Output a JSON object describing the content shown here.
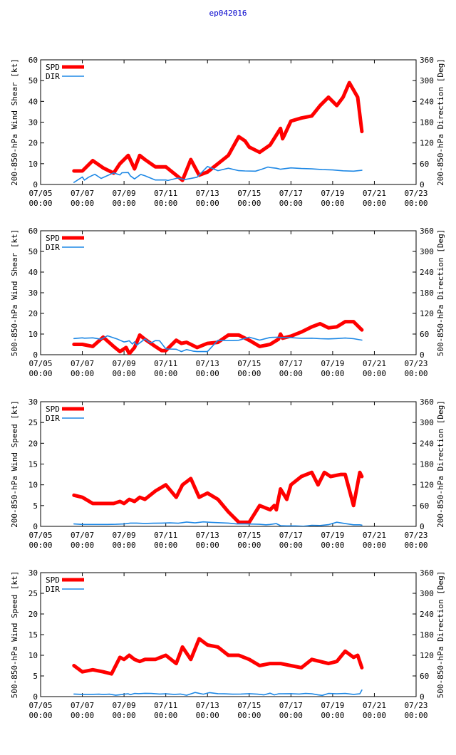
{
  "title": "ep042016",
  "colors": {
    "spd": "#ff0000",
    "dir": "#1e88e5",
    "title": "#0000cc"
  },
  "x_ticks": [
    [
      "07/05",
      "00:00"
    ],
    [
      "07/07",
      "00:00"
    ],
    [
      "07/09",
      "00:00"
    ],
    [
      "07/11",
      "00:00"
    ],
    [
      "07/13",
      "00:00"
    ],
    [
      "07/15",
      "00:00"
    ],
    [
      "07/17",
      "00:00"
    ],
    [
      "07/19",
      "00:00"
    ],
    [
      "07/21",
      "00:00"
    ],
    [
      "07/23",
      "00:00"
    ]
  ],
  "legend": {
    "spd": "SPD",
    "dir": "DIR"
  },
  "chart_data": [
    {
      "type": "line",
      "ylabel": "200-850-hPa Wind Shear [kt]",
      "y2label": "200-850-hPa Direction [Deg]",
      "xlim": [
        0,
        18
      ],
      "ylim": [
        0,
        60
      ],
      "y2lim": [
        0,
        360
      ],
      "yticks": [
        0,
        10,
        20,
        30,
        40,
        50,
        60
      ],
      "y2ticks": [
        0,
        60,
        120,
        180,
        240,
        300,
        360
      ],
      "series": [
        {
          "name": "SPD",
          "axis": "left",
          "x": [
            1.6,
            2.0,
            2.5,
            3.0,
            3.5,
            3.8,
            4.2,
            4.5,
            4.75,
            5.0,
            5.5,
            6.0,
            6.5,
            6.8,
            7.2,
            7.6,
            8.0,
            8.5,
            9.0,
            9.5,
            9.8,
            10.0,
            10.5,
            11.0,
            11.5,
            11.6,
            11.7,
            12.0,
            12.5,
            13.0,
            13.4,
            13.8,
            14.2,
            14.5,
            14.8,
            15.2,
            15.4
          ],
          "values": [
            6.5,
            6.5,
            11.5,
            8,
            5.5,
            10,
            14,
            7.5,
            14,
            12,
            8.5,
            8.5,
            4.5,
            2,
            12,
            4.5,
            6,
            10,
            14,
            23,
            21,
            18,
            15.5,
            19,
            27,
            22,
            24,
            30.5,
            32,
            33,
            38,
            42,
            38,
            42,
            49,
            42,
            25.5
          ]
        },
        {
          "name": "DIR",
          "axis": "right",
          "x": [
            1.6,
            2.0,
            2.1,
            2.3,
            2.6,
            2.9,
            3.5,
            3.8,
            3.9,
            4.2,
            4.3,
            4.5,
            4.8,
            5.0,
            5.5,
            6.0,
            6.1,
            6.5,
            6.6,
            6.9,
            7.5,
            8.0,
            8.5,
            9.0,
            9.5,
            9.8,
            10.3,
            10.6,
            10.9,
            11.0,
            11.3,
            11.5,
            12.0,
            12.5,
            13.0,
            13.5,
            14.0,
            14.5,
            15.0,
            15.4
          ],
          "values": [
            6,
            21.5,
            12.5,
            21,
            29.5,
            17.5,
            33.5,
            27.5,
            34,
            34.5,
            25,
            16,
            29,
            25,
            13,
            13,
            11.5,
            17.5,
            18.5,
            14,
            21,
            52,
            40,
            47,
            40,
            39,
            38.5,
            44,
            50.5,
            49,
            47,
            44,
            48,
            46,
            45,
            43,
            42,
            39.5,
            38.5,
            41
          ]
        }
      ]
    },
    {
      "type": "line",
      "ylabel": "500-850-hPa Wind Shear [kt]",
      "y2label": "500-850-hPa Direction [Deg]",
      "xlim": [
        0,
        18
      ],
      "ylim": [
        0,
        60
      ],
      "y2lim": [
        0,
        360
      ],
      "yticks": [
        0,
        10,
        20,
        30,
        40,
        50,
        60
      ],
      "y2ticks": [
        0,
        60,
        120,
        180,
        240,
        300,
        360
      ],
      "series": [
        {
          "name": "SPD",
          "axis": "left",
          "x": [
            1.6,
            2.0,
            2.5,
            3.0,
            3.5,
            3.8,
            4.1,
            4.25,
            4.5,
            4.75,
            5.0,
            5.5,
            5.8,
            6.0,
            6.5,
            6.75,
            7.0,
            7.5,
            8.0,
            8.5,
            9.0,
            9.5,
            10.0,
            10.5,
            11.0,
            11.4,
            11.5,
            11.6,
            12.0,
            12.5,
            13.0,
            13.4,
            13.8,
            14.2,
            14.6,
            15.0,
            15.4
          ],
          "values": [
            5,
            5,
            4,
            8.5,
            4,
            1.5,
            3.5,
            0.5,
            3.5,
            9.5,
            7.5,
            4,
            2,
            2,
            7,
            5.5,
            6,
            3.5,
            5.5,
            6,
            9.5,
            9.5,
            7,
            4,
            5,
            7.5,
            10,
            8,
            9,
            11,
            13.5,
            15,
            13,
            13.5,
            16,
            16,
            12
          ]
        },
        {
          "name": "DIR",
          "axis": "right",
          "x": [
            1.6,
            2.0,
            2.1,
            2.5,
            2.9,
            3.2,
            3.7,
            4.0,
            4.1,
            4.25,
            4.4,
            4.5,
            4.6,
            4.9,
            5.0,
            5.2,
            5.3,
            5.5,
            5.7,
            6.0,
            6.1,
            6.5,
            6.75,
            7.0,
            7.3,
            7.5,
            8.0,
            8.5,
            9.0,
            9.2,
            9.5,
            10.0,
            10.5,
            11.0,
            11.4,
            11.5,
            12.0,
            12.5,
            13.0,
            13.4,
            13.8,
            14.2,
            14.6,
            15.0,
            15.4
          ],
          "values": [
            47,
            49,
            48,
            49,
            45,
            55,
            45,
            37,
            38,
            40.5,
            31,
            37.5,
            27.5,
            41,
            46,
            37,
            34.5,
            41,
            40.5,
            17,
            16.5,
            16,
            9,
            15,
            10.5,
            9,
            9,
            42,
            41,
            41,
            42,
            51,
            42.5,
            50,
            51,
            50,
            49.5,
            47.5,
            48,
            46.5,
            46,
            47,
            48.5,
            46.5,
            42.5
          ]
        }
      ]
    },
    {
      "type": "line",
      "ylabel": "200-850-hPa Wind Speed [kt]",
      "y2label": "200-850-hPa Direction [Deg]",
      "xlim": [
        0,
        18
      ],
      "ylim": [
        0,
        30
      ],
      "y2lim": [
        0,
        360
      ],
      "yticks": [
        0,
        5,
        10,
        15,
        20,
        25,
        30
      ],
      "y2ticks": [
        0,
        60,
        120,
        180,
        240,
        300,
        360
      ],
      "series": [
        {
          "name": "SPD",
          "axis": "left",
          "x": [
            1.6,
            2.0,
            2.5,
            3.0,
            3.5,
            3.8,
            4.0,
            4.25,
            4.5,
            4.75,
            5.0,
            5.5,
            6.0,
            6.5,
            6.8,
            7.2,
            7.6,
            8.0,
            8.5,
            9.0,
            9.5,
            10.0,
            10.5,
            11.0,
            11.2,
            11.3,
            11.5,
            11.8,
            12.0,
            12.5,
            13.0,
            13.3,
            13.6,
            13.9,
            14.4,
            14.6,
            15.0,
            15.3,
            15.4
          ],
          "values": [
            7.5,
            7,
            5.5,
            5.5,
            5.5,
            6,
            5.5,
            6.5,
            6,
            7,
            6.5,
            8.5,
            10,
            7,
            10,
            11.5,
            7,
            8,
            6.5,
            3.5,
            1,
            1,
            5,
            4,
            5,
            4,
            9,
            6.5,
            10,
            12,
            13,
            10,
            13,
            12,
            12.5,
            12.5,
            5,
            13,
            12
          ]
        },
        {
          "name": "DIR",
          "axis": "right",
          "x": [
            1.6,
            2.0,
            2.4,
            2.8,
            3.2,
            3.6,
            4.0,
            4.3,
            4.6,
            5.0,
            5.4,
            5.8,
            6.2,
            6.6,
            7.0,
            7.4,
            7.8,
            8.2,
            8.6,
            9.0,
            9.4,
            9.8,
            10.2,
            10.5,
            10.8,
            11.0,
            11.3,
            11.5,
            11.8,
            12.2,
            12.6,
            13.0,
            13.4,
            13.8,
            14.2,
            14.6,
            15.0,
            15.3,
            15.4
          ],
          "values": [
            7,
            5.5,
            5.5,
            5.5,
            5.5,
            6,
            7,
            9.5,
            9.5,
            8.5,
            9,
            9.5,
            10,
            9,
            12.5,
            10,
            13,
            11.5,
            10.5,
            9.5,
            7,
            7,
            6.5,
            6,
            4.5,
            5.5,
            8,
            2,
            1.5,
            1.5,
            0.5,
            3,
            2.5,
            5,
            12,
            8,
            4.5,
            4.5,
            3.5
          ]
        }
      ]
    },
    {
      "type": "line",
      "ylabel": "500-850-hPa Wind Speed [kt]",
      "y2label": "500-850-hPa Direction [Deg]",
      "xlim": [
        0,
        18
      ],
      "ylim": [
        0,
        30
      ],
      "y2lim": [
        0,
        360
      ],
      "yticks": [
        0,
        5,
        10,
        15,
        20,
        25,
        30
      ],
      "y2ticks": [
        0,
        60,
        120,
        180,
        240,
        300,
        360
      ],
      "series": [
        {
          "name": "SPD",
          "axis": "left",
          "x": [
            1.6,
            2.0,
            2.5,
            3.0,
            3.4,
            3.8,
            4.0,
            4.25,
            4.5,
            4.75,
            5.0,
            5.5,
            6.0,
            6.5,
            6.8,
            7.2,
            7.6,
            8.0,
            8.5,
            9.0,
            9.5,
            10.0,
            10.5,
            11.0,
            11.3,
            11.5,
            12.0,
            12.5,
            13.0,
            13.4,
            13.8,
            14.2,
            14.6,
            15.0,
            15.2,
            15.4
          ],
          "values": [
            7.5,
            6,
            6.5,
            6,
            5.5,
            9.5,
            9,
            10,
            9,
            8.5,
            9,
            9,
            10,
            8,
            12,
            9,
            14,
            12.5,
            12,
            10,
            10,
            9,
            7.5,
            8,
            8,
            8,
            7.5,
            7,
            9,
            8.5,
            8,
            8.5,
            11,
            9.5,
            10,
            7
          ]
        },
        {
          "name": "DIR",
          "axis": "right",
          "x": [
            1.6,
            2.0,
            2.4,
            2.8,
            3.0,
            3.3,
            3.6,
            3.9,
            4.0,
            4.2,
            4.3,
            4.5,
            4.7,
            5.0,
            5.3,
            5.7,
            6.0,
            6.4,
            6.7,
            7.0,
            7.4,
            7.8,
            8.1,
            8.5,
            8.8,
            9.2,
            9.6,
            10.0,
            10.4,
            10.7,
            11.0,
            11.2,
            11.4,
            11.6,
            12.0,
            12.4,
            12.7,
            13.0,
            13.3,
            13.5,
            13.8,
            14.2,
            14.6,
            15.0,
            15.3,
            15.4
          ],
          "values": [
            7.5,
            6.5,
            6.5,
            7,
            6,
            7,
            4,
            6,
            7,
            8,
            5.5,
            9,
            8.5,
            9.5,
            9,
            7.5,
            8,
            6.5,
            7.5,
            4,
            12,
            7,
            11.5,
            8.5,
            8,
            7,
            7.5,
            8.5,
            7,
            5,
            10,
            5,
            8,
            8,
            8.5,
            7.5,
            9,
            8,
            5,
            3.5,
            9,
            8,
            9,
            6.5,
            8,
            19
          ]
        }
      ]
    }
  ]
}
